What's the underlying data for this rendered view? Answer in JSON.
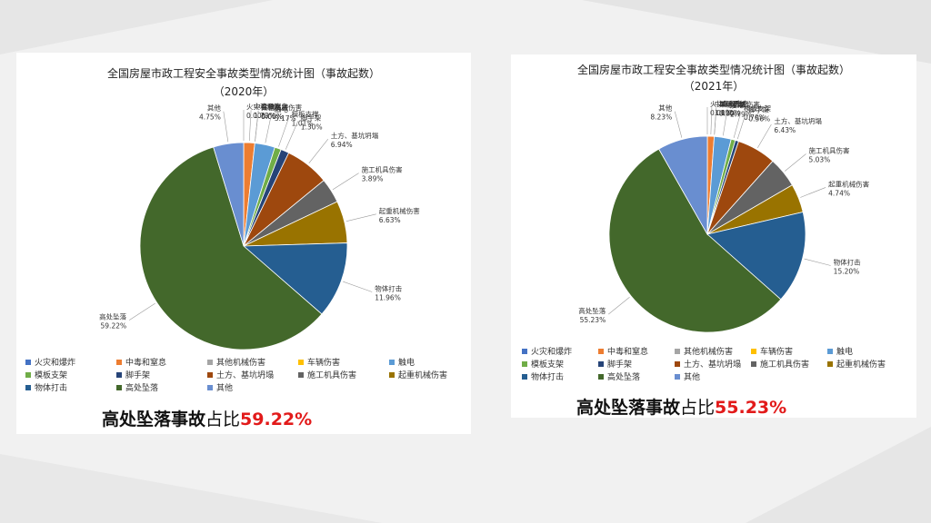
{
  "page": {
    "background": "#f1f1f1"
  },
  "chart_data": [
    {
      "type": "pie",
      "title": "全国房屋市政工程安全事故类型情况统计图（事故起数）",
      "subtitle": "（2020年）",
      "legend_position": "bottom",
      "categories": [
        "火灾和爆炸",
        "中毒和窒息",
        "其他机械伤害",
        "车辆伤害",
        "触电",
        "模板支架",
        "脚手架",
        "土方、基坑坍塌",
        "施工机具伤害",
        "起重机械伤害",
        "物体打击",
        "高处坠落",
        "其他"
      ],
      "values": [
        0.0,
        1.73,
        0.0,
        0.0,
        3.17,
        1.01,
        1.3,
        6.94,
        3.89,
        6.63,
        11.96,
        59.22,
        4.75
      ],
      "slice_labels": [
        {
          "name": "火灾和爆炸",
          "value": "0.00%"
        },
        {
          "name": "中毒和窒息",
          "value": "1.73%"
        },
        {
          "name": "其他机械伤害",
          "value": "0.00%"
        },
        {
          "name": "车辆伤害",
          "value": "0.00%"
        },
        {
          "name": "触电",
          "value": "3.17%"
        },
        {
          "name": "模板支撑",
          "value": "1.01%"
        },
        {
          "name": "脚手架",
          "value": "1.30%"
        },
        {
          "name": "土方、基坑坍塌",
          "value": "6.94%"
        },
        {
          "name": "施工机具伤害",
          "value": "3.89%"
        },
        {
          "name": "起重机械伤害",
          "value": "6.63%"
        },
        {
          "name": "物体打击",
          "value": "11.96%"
        },
        {
          "name": "高处坠落",
          "value": "59.22%"
        },
        {
          "name": "其他",
          "value": "4.75%"
        }
      ],
      "colors": [
        "#4472c4",
        "#ed7d31",
        "#a5a5a5",
        "#ffc000",
        "#5b9bd5",
        "#70ad47",
        "#264478",
        "#9e480e",
        "#636363",
        "#997300",
        "#255e91",
        "#43682b",
        "#698ed0"
      ]
    },
    {
      "type": "pie",
      "title": "全国房屋市政工程安全事故类型情况统计图（事故起数）",
      "subtitle": "（2021年）",
      "legend_position": "bottom",
      "categories": [
        "火灾和爆炸",
        "中毒和窒息",
        "其他机械伤害",
        "车辆伤害",
        "触电",
        "模板支架",
        "脚手架",
        "土方、基坑坍塌",
        "施工机具伤害",
        "起重机械伤害",
        "物体打击",
        "高处坠落",
        "其他"
      ],
      "values": [
        0.0,
        1.12,
        0.0,
        0.0,
        2.79,
        0.7,
        0.56,
        6.43,
        5.03,
        4.74,
        15.2,
        55.23,
        8.23
      ],
      "slice_labels": [
        {
          "name": "火灾和爆炸",
          "value": "0.00%"
        },
        {
          "name": "中毒和窒息",
          "value": "1.12%"
        },
        {
          "name": "其他机械伤害",
          "value": "0.00%"
        },
        {
          "name": "车辆伤害",
          "value": "0.00%"
        },
        {
          "name": "触电",
          "value": "2.79%"
        },
        {
          "name": "模板支架",
          "value": "0.70%"
        },
        {
          "name": "脚手架",
          "value": "0.56%"
        },
        {
          "name": "土方、基坑坍塌",
          "value": "6.43%"
        },
        {
          "name": "施工机具伤害",
          "value": "5.03%"
        },
        {
          "name": "起重机械伤害",
          "value": "4.74%"
        },
        {
          "name": "物体打击",
          "value": "15.20%"
        },
        {
          "name": "高处坠落",
          "value": "55.23%"
        },
        {
          "name": "其他",
          "value": "8.23%"
        }
      ],
      "colors": [
        "#4472c4",
        "#ed7d31",
        "#a5a5a5",
        "#ffc000",
        "#5b9bd5",
        "#70ad47",
        "#264478",
        "#9e480e",
        "#636363",
        "#997300",
        "#255e91",
        "#43682b",
        "#698ed0"
      ]
    }
  ],
  "summaries": [
    {
      "prefix": "高处坠落事故",
      "middle": "占比",
      "percent": "59.22%"
    },
    {
      "prefix": "高处坠落事故",
      "middle": "占比",
      "percent": "55.23%"
    }
  ]
}
